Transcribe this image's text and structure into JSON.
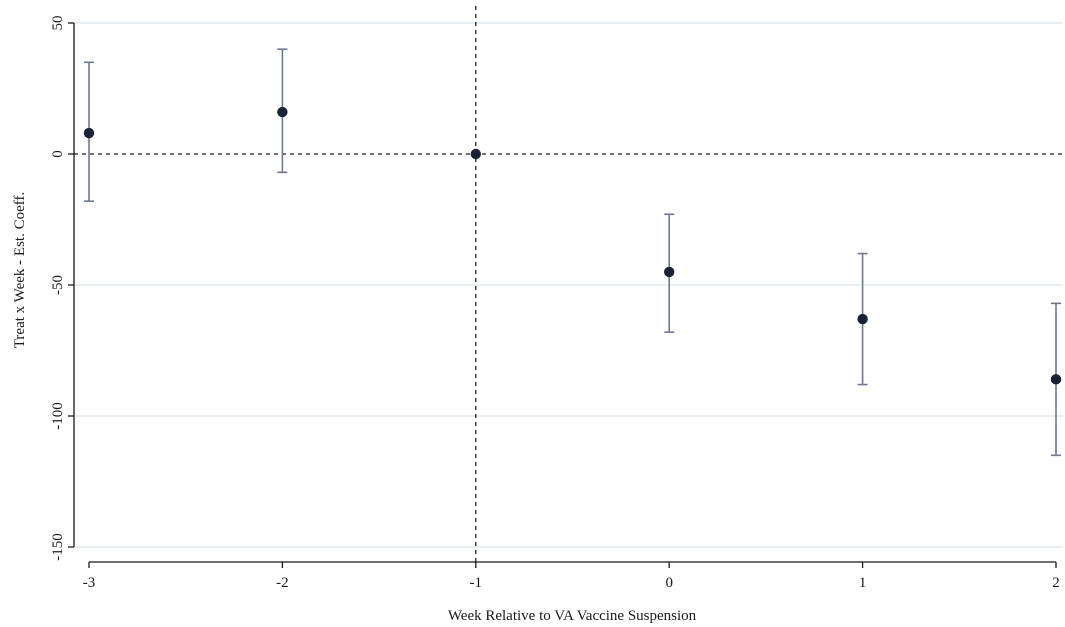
{
  "chart_data": {
    "type": "scatter",
    "subtype": "coefficient-plot-with-confidence-intervals",
    "title": "",
    "xlabel": "Week Relative to VA Vaccine Suspension",
    "ylabel": "Treat x Week - Est. Coeff.",
    "xlim": [
      -3,
      2
    ],
    "ylim": [
      -150,
      50
    ],
    "x_ticks": [
      -3,
      -2,
      -1,
      0,
      1,
      2
    ],
    "x_tick_labels": [
      "-3",
      "-2",
      "-1",
      "0",
      "1",
      "2"
    ],
    "y_ticks": [
      50,
      0,
      -50,
      -100,
      -150
    ],
    "y_tick_labels": [
      "50",
      "0",
      "-50",
      "-100",
      "-150"
    ],
    "grid": "horizontal",
    "legend": "none",
    "reference_lines": {
      "horizontal_y": 0,
      "vertical_x": -1,
      "style": "dashed"
    },
    "points": [
      {
        "x": -3,
        "y": 8,
        "ci_low": -18,
        "ci_high": 35
      },
      {
        "x": -2,
        "y": 16,
        "ci_low": -7,
        "ci_high": 40
      },
      {
        "x": -1,
        "y": 0,
        "ci_low": 0,
        "ci_high": 0
      },
      {
        "x": 0,
        "y": -45,
        "ci_low": -68,
        "ci_high": -23
      },
      {
        "x": 1,
        "y": -63,
        "ci_low": -88,
        "ci_high": -38
      },
      {
        "x": 2,
        "y": -86,
        "ci_low": -115,
        "ci_high": -57
      }
    ],
    "colors": {
      "point": "#1a2238",
      "ci": "#6e7890",
      "grid": "#d9e5ea",
      "axis": "#1a1a1a",
      "reference": "#1a1a1a"
    }
  }
}
